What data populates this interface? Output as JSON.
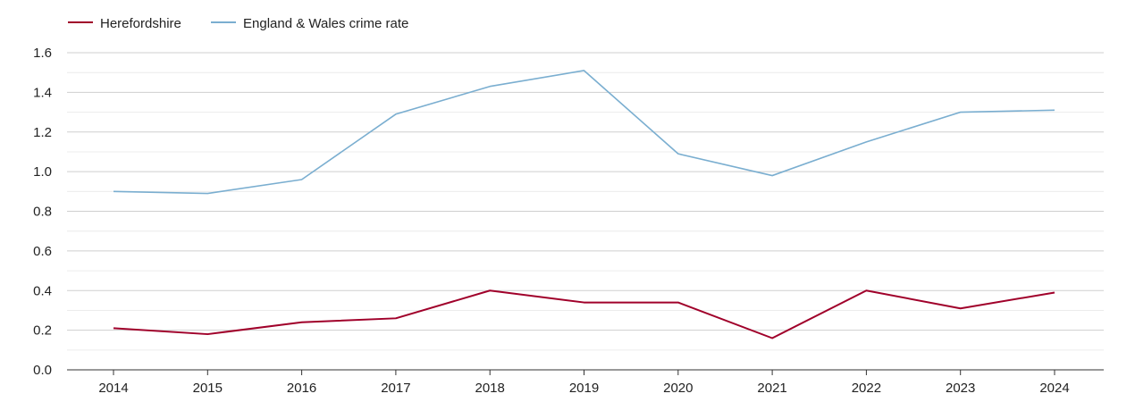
{
  "chart_data": {
    "type": "line",
    "title": "",
    "xlabel": "",
    "ylabel": "",
    "x": [
      "2014",
      "2015",
      "2016",
      "2017",
      "2018",
      "2019",
      "2020",
      "2021",
      "2022",
      "2023",
      "2024"
    ],
    "y_ticks": [
      "0.0",
      "0.2",
      "0.4",
      "0.6",
      "0.8",
      "1.0",
      "1.2",
      "1.4",
      "1.6"
    ],
    "ylim": [
      0,
      1.6
    ],
    "grid": true,
    "legend_position": "top-left",
    "series": [
      {
        "name": "Herefordshire",
        "color": "#a0002a",
        "values": [
          0.21,
          0.18,
          0.24,
          0.26,
          0.4,
          0.34,
          0.34,
          0.16,
          0.4,
          0.31,
          0.39
        ]
      },
      {
        "name": "England & Wales crime rate",
        "color": "#7aaed0",
        "values": [
          0.9,
          0.89,
          0.96,
          1.29,
          1.43,
          1.51,
          1.09,
          0.98,
          1.15,
          1.3,
          1.31
        ]
      }
    ]
  }
}
